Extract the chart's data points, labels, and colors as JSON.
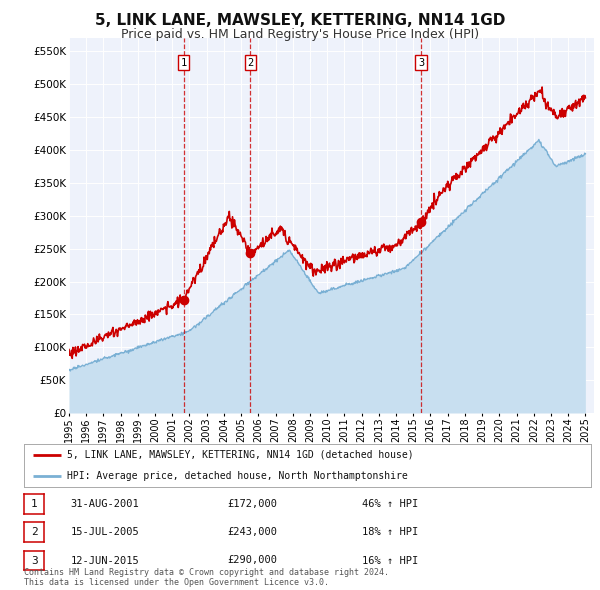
{
  "title": "5, LINK LANE, MAWSLEY, KETTERING, NN14 1GD",
  "subtitle": "Price paid vs. HM Land Registry's House Price Index (HPI)",
  "title_fontsize": 11,
  "subtitle_fontsize": 9,
  "background_color": "#ffffff",
  "plot_bg_color": "#eef2fb",
  "grid_color": "#ffffff",
  "ylabel_ticks": [
    "£0",
    "£50K",
    "£100K",
    "£150K",
    "£200K",
    "£250K",
    "£300K",
    "£350K",
    "£400K",
    "£450K",
    "£500K",
    "£550K"
  ],
  "ytick_values": [
    0,
    50000,
    100000,
    150000,
    200000,
    250000,
    300000,
    350000,
    400000,
    450000,
    500000,
    550000
  ],
  "ylim": [
    0,
    570000
  ],
  "xlim_start": 1995.0,
  "xlim_end": 2025.5,
  "red_line_color": "#cc0000",
  "blue_line_color": "#7ab0d4",
  "blue_fill_color": "#c8dff0",
  "sale_markers": [
    {
      "year": 2001.667,
      "price": 172000,
      "label": "1"
    },
    {
      "year": 2005.542,
      "price": 243000,
      "label": "2"
    },
    {
      "year": 2015.45,
      "price": 290000,
      "label": "3"
    }
  ],
  "vline_years": [
    2001.667,
    2005.542,
    2015.45
  ],
  "vline_color": "#cc0000",
  "legend_line1": "5, LINK LANE, MAWSLEY, KETTERING, NN14 1GD (detached house)",
  "legend_line2": "HPI: Average price, detached house, North Northamptonshire",
  "table_rows": [
    {
      "num": "1",
      "date": "31-AUG-2001",
      "price": "£172,000",
      "change": "46% ↑ HPI"
    },
    {
      "num": "2",
      "date": "15-JUL-2005",
      "price": "£243,000",
      "change": "18% ↑ HPI"
    },
    {
      "num": "3",
      "date": "12-JUN-2015",
      "price": "£290,000",
      "change": "16% ↑ HPI"
    }
  ],
  "footer": "Contains HM Land Registry data © Crown copyright and database right 2024.\nThis data is licensed under the Open Government Licence v3.0.",
  "xtick_years": [
    1995,
    1996,
    1997,
    1998,
    1999,
    2000,
    2001,
    2002,
    2003,
    2004,
    2005,
    2006,
    2007,
    2008,
    2009,
    2010,
    2011,
    2012,
    2013,
    2014,
    2015,
    2016,
    2017,
    2018,
    2019,
    2020,
    2021,
    2022,
    2023,
    2024,
    2025
  ]
}
